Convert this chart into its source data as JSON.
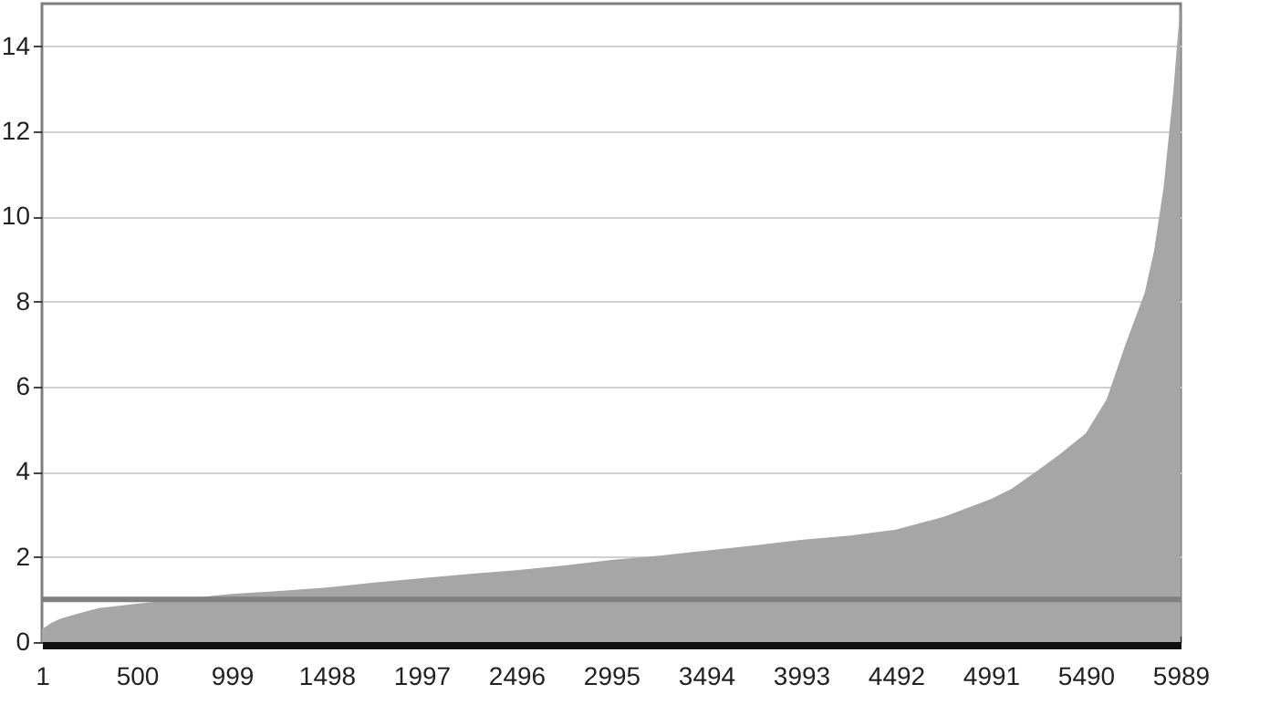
{
  "chart_data": {
    "type": "area",
    "x": [
      1,
      50,
      100,
      200,
      300,
      500,
      750,
      999,
      1250,
      1498,
      1750,
      1997,
      2250,
      2496,
      2750,
      2995,
      3250,
      3494,
      3750,
      3993,
      4250,
      4492,
      4750,
      4991,
      5100,
      5240,
      5350,
      5490,
      5600,
      5700,
      5800,
      5850,
      5900,
      5950,
      5970,
      5989
    ],
    "series": [
      {
        "color": "#a6a6a6",
        "values": [
          0.3,
          0.45,
          0.55,
          0.68,
          0.8,
          0.9,
          1.02,
          1.13,
          1.2,
          1.28,
          1.4,
          1.5,
          1.6,
          1.69,
          1.8,
          1.93,
          2.03,
          2.15,
          2.27,
          2.4,
          2.5,
          2.64,
          2.95,
          3.36,
          3.6,
          4.04,
          4.4,
          4.9,
          5.7,
          7.0,
          8.2,
          9.2,
          10.7,
          12.9,
          14.0,
          15.0
        ]
      }
    ],
    "xlim": [
      1,
      5989
    ],
    "xticks": [
      1,
      500,
      999,
      1498,
      1997,
      2496,
      2995,
      3494,
      3993,
      4492,
      4991,
      5490,
      5989
    ],
    "ylim": [
      0,
      15
    ],
    "yticks": [
      0,
      2,
      4,
      6,
      8,
      10,
      12,
      14
    ],
    "grid": "y",
    "ref_lines": [
      {
        "axis": "y",
        "value": 1,
        "color": "#808080"
      }
    ]
  }
}
